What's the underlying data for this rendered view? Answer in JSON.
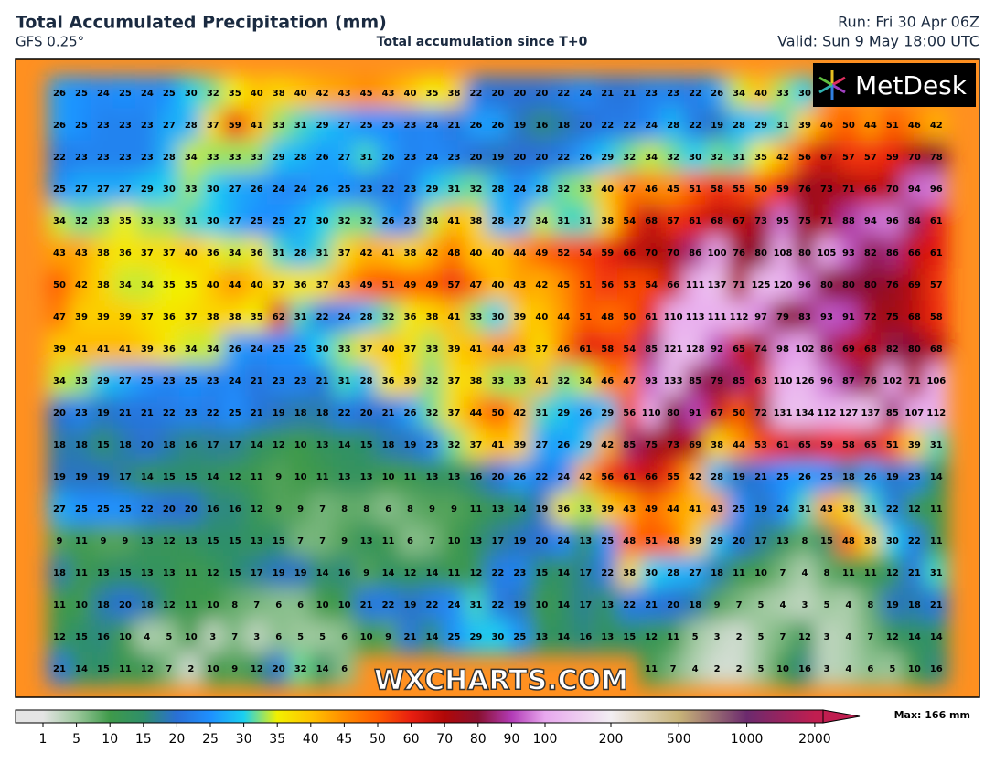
{
  "header": {
    "title": "Total Accumulated Precipitation (mm)",
    "model": "GFS 0.25°",
    "subtitle": "Total accumulation since T+0",
    "run": "Run: Fri 30 Apr 06Z",
    "valid": "Valid: Sun 9 May 18:00 UTC"
  },
  "logo": "MetDesk",
  "watermark": "WXCHARTS.COM",
  "grid": {
    "rows": [
      [
        26,
        25,
        24,
        25,
        24,
        25,
        30,
        32,
        35,
        40,
        38,
        40,
        42,
        43,
        45,
        43,
        40,
        35,
        38,
        22,
        20,
        20,
        20,
        22,
        24,
        21,
        21,
        23,
        23,
        22,
        26,
        34,
        40,
        33,
        30
      ],
      [
        26,
        25,
        23,
        23,
        23,
        27,
        28,
        37,
        59,
        41,
        33,
        31,
        29,
        27,
        25,
        25,
        23,
        24,
        21,
        26,
        26,
        19,
        16,
        18,
        20,
        22,
        22,
        24,
        28,
        22,
        19,
        28,
        29,
        31,
        39,
        46,
        50,
        44,
        51,
        46,
        42
      ],
      [
        22,
        23,
        23,
        23,
        23,
        28,
        34,
        33,
        33,
        33,
        29,
        28,
        26,
        27,
        31,
        26,
        23,
        24,
        23,
        20,
        19,
        20,
        20,
        22,
        26,
        29,
        32,
        34,
        32,
        30,
        32,
        31,
        35,
        42,
        56,
        67,
        57,
        57,
        59,
        70,
        78
      ],
      [
        25,
        27,
        27,
        27,
        29,
        30,
        33,
        30,
        27,
        26,
        24,
        24,
        26,
        25,
        23,
        22,
        23,
        29,
        31,
        32,
        28,
        24,
        28,
        32,
        33,
        40,
        47,
        46,
        45,
        51,
        58,
        55,
        50,
        59,
        76,
        73,
        71,
        66,
        70,
        94,
        96
      ],
      [
        34,
        32,
        33,
        35,
        33,
        33,
        31,
        30,
        27,
        25,
        25,
        27,
        30,
        32,
        32,
        26,
        23,
        34,
        41,
        38,
        28,
        27,
        34,
        31,
        31,
        38,
        54,
        68,
        57,
        61,
        68,
        67,
        73,
        95,
        75,
        71,
        88,
        94,
        96,
        84,
        61
      ],
      [
        43,
        43,
        38,
        36,
        37,
        37,
        40,
        36,
        34,
        36,
        31,
        28,
        31,
        37,
        42,
        41,
        38,
        42,
        48,
        40,
        40,
        44,
        49,
        52,
        54,
        59,
        66,
        70,
        70,
        86,
        100,
        76,
        80,
        108,
        80,
        105,
        93,
        82,
        86,
        66,
        61
      ],
      [
        50,
        42,
        38,
        34,
        34,
        35,
        35,
        40,
        44,
        40,
        37,
        36,
        37,
        43,
        49,
        51,
        49,
        49,
        57,
        47,
        40,
        43,
        42,
        45,
        51,
        56,
        53,
        54,
        66,
        111,
        137,
        71,
        125,
        120,
        96,
        80,
        80,
        80,
        76,
        69,
        57
      ],
      [
        47,
        39,
        39,
        39,
        37,
        36,
        37,
        38,
        38,
        35,
        62,
        31,
        22,
        24,
        28,
        32,
        36,
        38,
        41,
        33,
        30,
        39,
        40,
        44,
        51,
        48,
        50,
        61,
        110,
        113,
        111,
        112,
        97,
        79,
        83,
        93,
        91,
        72,
        75,
        68,
        58
      ],
      [
        39,
        41,
        41,
        41,
        39,
        36,
        34,
        34,
        26,
        24,
        25,
        25,
        30,
        33,
        37,
        40,
        37,
        33,
        39,
        41,
        44,
        43,
        37,
        46,
        61,
        58,
        54,
        85,
        121,
        128,
        92,
        65,
        74,
        98,
        102,
        86,
        69,
        68,
        82,
        80,
        68
      ],
      [
        34,
        33,
        29,
        27,
        25,
        23,
        25,
        23,
        24,
        21,
        23,
        23,
        21,
        31,
        28,
        36,
        39,
        32,
        37,
        38,
        33,
        33,
        41,
        32,
        34,
        46,
        47,
        93,
        133,
        85,
        79,
        85,
        63,
        110,
        126,
        96,
        87,
        76,
        102,
        71,
        106
      ],
      [
        20,
        23,
        19,
        21,
        21,
        22,
        23,
        22,
        25,
        21,
        19,
        18,
        18,
        22,
        20,
        21,
        26,
        32,
        37,
        44,
        50,
        42,
        31,
        29,
        26,
        29,
        56,
        110,
        80,
        91,
        67,
        50,
        72,
        131,
        134,
        112,
        127,
        137,
        85,
        107,
        112
      ],
      [
        18,
        18,
        15,
        18,
        20,
        18,
        16,
        17,
        17,
        14,
        12,
        10,
        13,
        14,
        15,
        18,
        19,
        23,
        32,
        37,
        41,
        39,
        27,
        26,
        29,
        42,
        85,
        75,
        73,
        69,
        38,
        44,
        53,
        61,
        65,
        59,
        58,
        65,
        51,
        39,
        31
      ],
      [
        19,
        19,
        19,
        17,
        14,
        15,
        15,
        14,
        12,
        11,
        9,
        10,
        11,
        13,
        13,
        10,
        11,
        13,
        13,
        16,
        20,
        26,
        22,
        24,
        42,
        56,
        61,
        66,
        55,
        42,
        28,
        19,
        21,
        25,
        26,
        25,
        18,
        26,
        19,
        23,
        14
      ],
      [
        27,
        25,
        25,
        25,
        22,
        20,
        20,
        16,
        16,
        12,
        9,
        9,
        7,
        8,
        8,
        6,
        8,
        9,
        9,
        11,
        13,
        14,
        19,
        36,
        33,
        39,
        43,
        49,
        44,
        41,
        43,
        25,
        19,
        24,
        31,
        43,
        38,
        31,
        22,
        12,
        11
      ],
      [
        9,
        11,
        9,
        9,
        13,
        12,
        13,
        15,
        15,
        13,
        15,
        7,
        7,
        9,
        13,
        11,
        6,
        7,
        10,
        13,
        17,
        19,
        20,
        24,
        13,
        25,
        48,
        51,
        48,
        39,
        29,
        20,
        17,
        13,
        8,
        15,
        48,
        38,
        30,
        22,
        11
      ],
      [
        18,
        11,
        13,
        15,
        13,
        13,
        11,
        12,
        15,
        17,
        19,
        19,
        14,
        16,
        9,
        14,
        12,
        14,
        11,
        12,
        22,
        23,
        15,
        14,
        17,
        22,
        38,
        30,
        28,
        27,
        18,
        11,
        10,
        7,
        4,
        8,
        11,
        11,
        12,
        21,
        31
      ],
      [
        11,
        10,
        18,
        20,
        18,
        12,
        11,
        10,
        8,
        7,
        6,
        6,
        10,
        10,
        21,
        22,
        19,
        22,
        24,
        31,
        22,
        19,
        10,
        14,
        17,
        13,
        22,
        21,
        20,
        18,
        9,
        7,
        5,
        4,
        3,
        5,
        4,
        8,
        19,
        18,
        21
      ],
      [
        12,
        15,
        16,
        10,
        4,
        5,
        10,
        3,
        7,
        3,
        6,
        5,
        5,
        6,
        10,
        9,
        21,
        14,
        25,
        29,
        30,
        25,
        13,
        14,
        16,
        13,
        15,
        12,
        11,
        5,
        3,
        2,
        5,
        7,
        12,
        3,
        4,
        7,
        12,
        14,
        14
      ],
      [
        21,
        14,
        15,
        11,
        12,
        7,
        2,
        10,
        9,
        12,
        20,
        32,
        14,
        6,
        null,
        null,
        null,
        null,
        null,
        null,
        null,
        null,
        null,
        null,
        null,
        null,
        null,
        11,
        7,
        4,
        2,
        2,
        5,
        10,
        16,
        3,
        4,
        6,
        5,
        10,
        16
      ]
    ]
  },
  "legend": {
    "ticks": [
      1,
      5,
      10,
      15,
      20,
      25,
      30,
      35,
      40,
      45,
      50,
      60,
      70,
      80,
      90,
      100,
      200,
      500,
      1000,
      2000
    ],
    "colors": [
      "#e4e4e4",
      "#9cc89c",
      "#3f9a4a",
      "#2f8f6a",
      "#2a6fd6",
      "#1e90ff",
      "#1ad0f0",
      "#f2f000",
      "#ffc400",
      "#ff8c00",
      "#ff5a00",
      "#e81e10",
      "#b00808",
      "#8a1030",
      "#b23bb6",
      "#e8a8ee",
      "#f2eef2",
      "#c8b478",
      "#6c2a6e",
      "#c01e50"
    ],
    "max": "Max: 166 mm"
  }
}
